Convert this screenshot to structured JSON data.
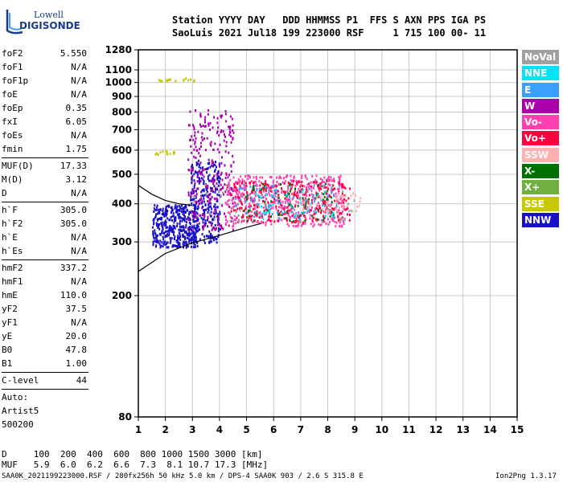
{
  "logo": {
    "line1": "Lowell",
    "line2": "DIGISONDE"
  },
  "header": {
    "row1": "Station YYYY DAY   DDD HHMMSS P1  FFS S AXN PPS IGA PS",
    "row2": "SaoLuis 2021 Jul18 199 223000 RSF     1 715 100 00- 11"
  },
  "params": [
    {
      "name": "foF2",
      "value": "5.550"
    },
    {
      "name": "foF1",
      "value": "N/A"
    },
    {
      "name": "foF1p",
      "value": "N/A"
    },
    {
      "name": "foE",
      "value": "N/A"
    },
    {
      "name": "foEp",
      "value": "0.35"
    },
    {
      "name": "fxI",
      "value": "6.05"
    },
    {
      "name": "foEs",
      "value": "N/A"
    },
    {
      "name": "fmin",
      "value": "1.75"
    },
    {
      "name": "MUF(D)",
      "value": "17.33"
    },
    {
      "name": "M(D)",
      "value": "3.12"
    },
    {
      "name": "D",
      "value": "N/A"
    },
    {
      "name": "h`F",
      "value": "305.0"
    },
    {
      "name": "h`F2",
      "value": "305.0"
    },
    {
      "name": "h`E",
      "value": "N/A"
    },
    {
      "name": "h`Es",
      "value": "N/A"
    },
    {
      "name": "hmF2",
      "value": "337.2"
    },
    {
      "name": "hmF1",
      "value": "N/A"
    },
    {
      "name": "hmE",
      "value": "110.0"
    },
    {
      "name": "yF2",
      "value": "37.5"
    },
    {
      "name": "yF1",
      "value": "N/A"
    },
    {
      "name": "yE",
      "value": "20.0"
    },
    {
      "name": "B0",
      "value": "47.8"
    },
    {
      "name": "B1",
      "value": "1.00"
    },
    {
      "name": "C-level",
      "value": "44"
    }
  ],
  "auto": {
    "line1": "Auto:",
    "line2": "Artist5",
    "line3": "500200"
  },
  "legend": [
    {
      "label": "NoVal",
      "color": "#a0a0a0"
    },
    {
      "label": "NNE",
      "color": "#00e5ff"
    },
    {
      "label": "E",
      "color": "#3aa0ff"
    },
    {
      "label": "W",
      "color": "#aa00aa"
    },
    {
      "label": "Vo-",
      "color": "#ff40b0"
    },
    {
      "label": "Vo+",
      "color": "#ff0040"
    },
    {
      "label": "SSW",
      "color": "#ffb0b0"
    },
    {
      "label": "X-",
      "color": "#007000"
    },
    {
      "label": "X+",
      "color": "#70b040"
    },
    {
      "label": "SSE",
      "color": "#c8c800"
    },
    {
      "label": "NNW",
      "color": "#1a10c8"
    }
  ],
  "chart_data": {
    "type": "scatter",
    "x_ticks": [
      "1",
      "2",
      "3",
      "4",
      "5",
      "6",
      "7",
      "8",
      "9",
      "10",
      "11",
      "12",
      "13",
      "14",
      "15"
    ],
    "y_ticks": [
      "80",
      "200",
      "300",
      "400",
      "500",
      "600",
      "700",
      "800",
      "900",
      "1000",
      "1100",
      "1280"
    ],
    "xlim": [
      1,
      15
    ],
    "ylim": [
      80,
      1280
    ],
    "y_scale": "log",
    "grid": true,
    "clusters": [
      {
        "name": "NNW",
        "f": [
          1.5,
          3.2
        ],
        "h": [
          290,
          400
        ],
        "n": 420
      },
      {
        "name": "NNW",
        "f": [
          2.9,
          4.0
        ],
        "h": [
          300,
          560
        ],
        "n": 280
      },
      {
        "name": "W",
        "f": [
          2.8,
          4.5
        ],
        "h": [
          330,
          820
        ],
        "n": 260
      },
      {
        "name": "Vo-",
        "f": [
          4.2,
          8.6
        ],
        "h": [
          340,
          500
        ],
        "n": 520
      },
      {
        "name": "Vo+",
        "f": [
          4.4,
          8.8
        ],
        "h": [
          350,
          480
        ],
        "n": 260
      },
      {
        "name": "X-",
        "f": [
          4.8,
          8.2
        ],
        "h": [
          350,
          470
        ],
        "n": 90
      },
      {
        "name": "E",
        "f": [
          4.5,
          8.5
        ],
        "h": [
          360,
          470
        ],
        "n": 80
      },
      {
        "name": "NNE",
        "f": [
          5.3,
          8.2
        ],
        "h": [
          360,
          450
        ],
        "n": 40
      },
      {
        "name": "SSW",
        "f": [
          7.0,
          9.2
        ],
        "h": [
          380,
          440
        ],
        "n": 40
      },
      {
        "name": "NoVal",
        "f": [
          3.0,
          9.0
        ],
        "h": [
          350,
          470
        ],
        "n": 60
      },
      {
        "name": "SSE",
        "f": [
          1.7,
          3.1
        ],
        "h": [
          1015,
          1040
        ],
        "n": 18
      },
      {
        "name": "SSE",
        "f": [
          1.6,
          2.4
        ],
        "h": [
          583,
          600
        ],
        "n": 12
      }
    ],
    "curves": [
      {
        "name": "profile",
        "x": [
          1,
          2,
          3,
          4,
          5,
          5.55
        ],
        "y": [
          240,
          275,
          298,
          315,
          335,
          345
        ]
      },
      {
        "name": "trace",
        "x": [
          1,
          1.5,
          2,
          2.5,
          3
        ],
        "y": [
          460,
          430,
          410,
          400,
          395
        ]
      }
    ]
  },
  "footer": {
    "d_row": "D     100  200  400  600  800 1000 1500 3000 [km]",
    "muf_row": "MUF   5.9  6.0  6.2  6.6  7.3  8.1 10.7 17.3 [MHz]",
    "bottom_left": "SAA0K_2021199223000.RSF / 280fx256h 50 kHz 5.0 km / DPS-4 SAA0K 903 / 2.6 S 315.8 E",
    "bottom_right": "Ion2Png 1.3.17"
  }
}
